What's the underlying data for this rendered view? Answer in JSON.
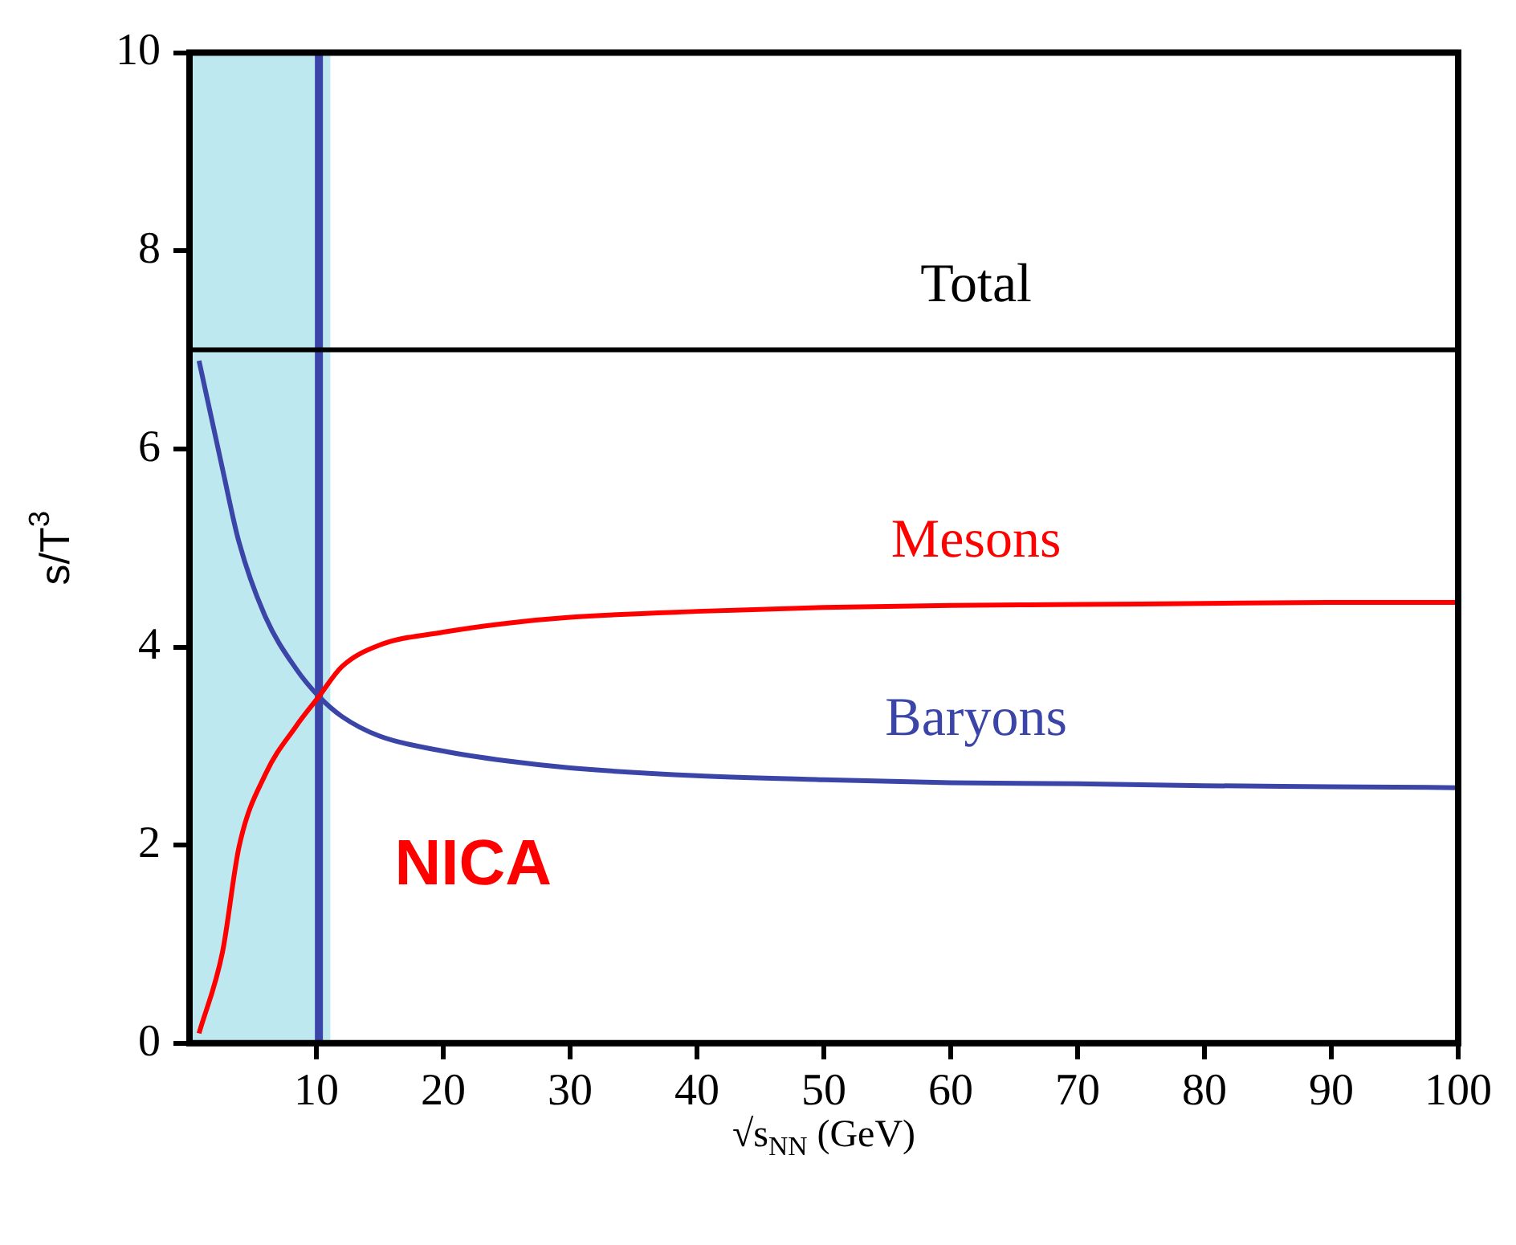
{
  "chart_data": {
    "type": "line",
    "xlabel": "√s$_{NN}$ (GeV)",
    "ylabel": "s/T$^{3}$",
    "xlim": [
      0,
      100
    ],
    "xticks": [
      10,
      20,
      30,
      40,
      50,
      60,
      70,
      80,
      90,
      100
    ],
    "ylim": [
      0,
      10
    ],
    "yticks": [
      0,
      2,
      4,
      6,
      8,
      10
    ],
    "grid": false,
    "legend": false,
    "marker": "none",
    "line_style": "solid",
    "series": [
      {
        "name": "Total",
        "color": "#000000",
        "x": [
          0,
          100
        ],
        "values": [
          7,
          7
        ]
      },
      {
        "name": "Mesons",
        "color": "#ff0000",
        "x": [
          0.75,
          2.6,
          3.9,
          6,
          8.4,
          10.2,
          12,
          15,
          20,
          25,
          30,
          40,
          50,
          60,
          70,
          80,
          90,
          100
        ],
        "values": [
          0.1,
          0.92,
          1.98,
          2.72,
          3.2,
          3.5,
          3.8,
          4.02,
          4.15,
          4.24,
          4.3,
          4.36,
          4.4,
          4.42,
          4.43,
          4.44,
          4.45,
          4.45
        ]
      },
      {
        "name": "Baryons",
        "color": "#3b45a8",
        "x": [
          0.75,
          2.6,
          3.9,
          6,
          8.4,
          10.2,
          12,
          15,
          20,
          25,
          30,
          40,
          50,
          60,
          70,
          80,
          90,
          100
        ],
        "values": [
          6.89,
          5.8,
          5.06,
          4.3,
          3.78,
          3.5,
          3.3,
          3.1,
          2.95,
          2.85,
          2.78,
          2.7,
          2.66,
          2.63,
          2.62,
          2.6,
          2.59,
          2.58
        ]
      }
    ],
    "ref_lines": [
      {
        "axis": "x",
        "value": 10.2,
        "color": "#3b45a8"
      }
    ],
    "bands": [
      {
        "axis": "x",
        "from": 0,
        "to": 11.1,
        "label": "NICA",
        "color": "#bde8ef"
      }
    ]
  }
}
